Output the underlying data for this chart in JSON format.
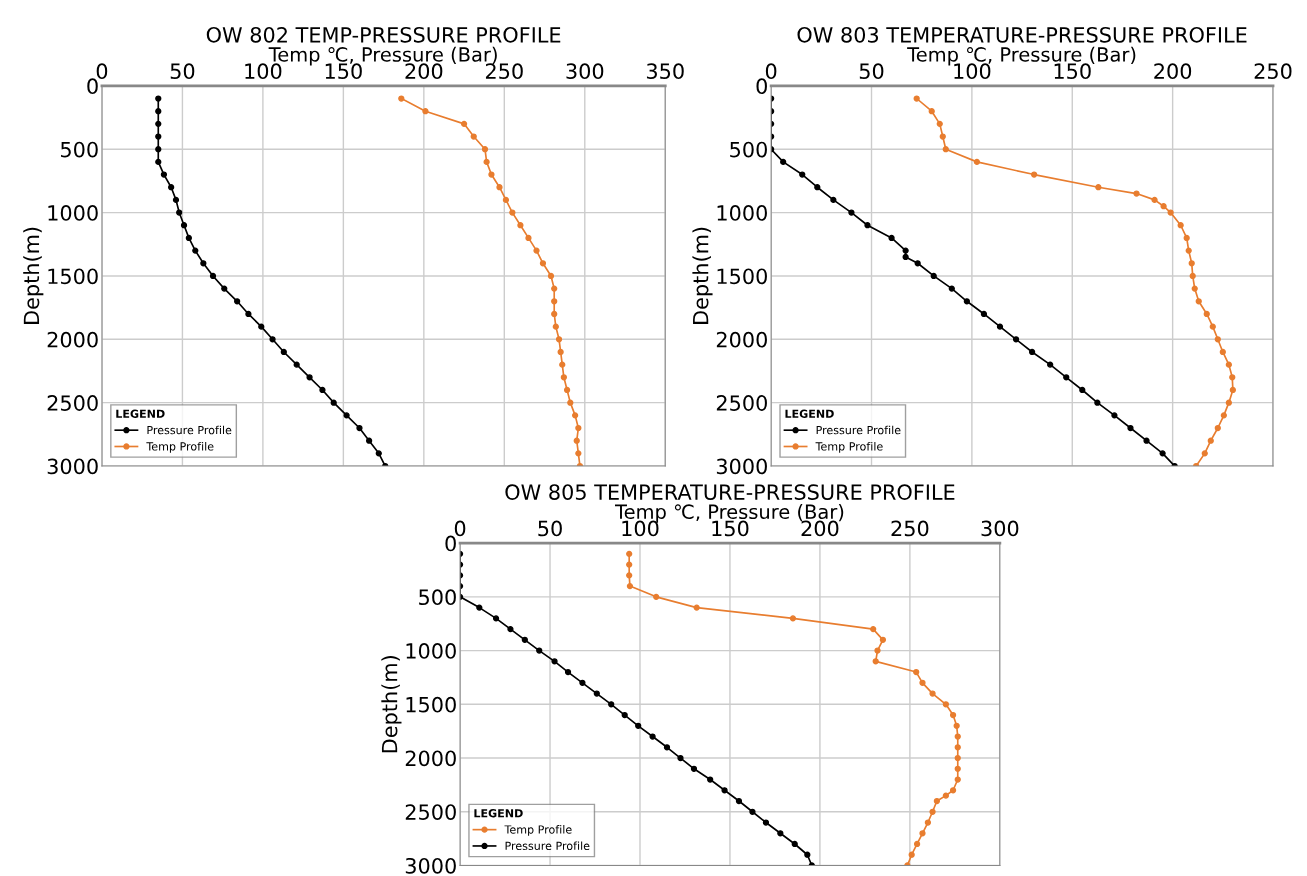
{
  "chart_data": [
    {
      "type": "line",
      "title": "OW 802 TEMP-PRESSURE PROFILE",
      "xlabel": "Temp ℃, Pressure (Bar)",
      "ylabel": "Depth(m)",
      "legend_title": "LEGEND",
      "legend": "bottom left",
      "grid": true,
      "marker": "circle",
      "line_style": "solid",
      "xlim": [
        0,
        350
      ],
      "xticks": [
        0,
        50,
        100,
        150,
        200,
        250,
        300,
        350
      ],
      "ylim": [
        3000,
        0
      ],
      "yticks": [
        0,
        500,
        1000,
        1500,
        2000,
        2500,
        3000
      ],
      "series": [
        {
          "name": "Pressure Profile",
          "color": "#000000",
          "x": [
            35,
            35,
            35,
            35,
            35,
            35,
            38.5,
            43,
            46,
            48,
            51,
            54,
            58,
            63,
            69,
            76,
            84,
            91,
            99,
            106,
            113,
            121,
            129,
            137,
            144,
            152,
            160,
            166,
            172,
            176
          ],
          "values": [
            100,
            200,
            300,
            400,
            500,
            600,
            700,
            800,
            900,
            1000,
            1100,
            1200,
            1300,
            1400,
            1500,
            1600,
            1700,
            1800,
            1900,
            2000,
            2100,
            2200,
            2300,
            2400,
            2500,
            2600,
            2700,
            2800,
            2900,
            3000
          ]
        },
        {
          "name": "Temp Profile",
          "color": "#e87d2f",
          "x": [
            186,
            201,
            225,
            231,
            238,
            239,
            242,
            247,
            251,
            255,
            260,
            265,
            270,
            274,
            279,
            281,
            281,
            281,
            282,
            284,
            285,
            286,
            287,
            289,
            291,
            294,
            296,
            295,
            296,
            297
          ],
          "values": [
            100,
            200,
            300,
            400,
            500,
            600,
            700,
            800,
            900,
            1000,
            1100,
            1200,
            1300,
            1400,
            1500,
            1600,
            1700,
            1800,
            1900,
            2000,
            2100,
            2200,
            2300,
            2400,
            2500,
            2600,
            2700,
            2800,
            2900,
            3000
          ]
        }
      ]
    },
    {
      "type": "line",
      "title": "OW 803 TEMPERATURE-PRESSURE PROFILE",
      "xlabel": "Temp ℃, Pressure (Bar)",
      "ylabel": "Depth(m)",
      "legend_title": "LEGEND",
      "legend": "bottom left",
      "grid": true,
      "marker": "circle",
      "line_style": "solid",
      "xlim": [
        0,
        250
      ],
      "xticks": [
        0,
        50,
        100,
        150,
        200,
        250
      ],
      "ylim": [
        3000,
        0
      ],
      "yticks": [
        0,
        500,
        1000,
        1500,
        2000,
        2500,
        3000
      ],
      "series": [
        {
          "name": "Pressure Profile",
          "color": "#000000",
          "x": [
            0,
            0,
            0,
            0,
            0,
            6,
            15.5,
            23,
            31,
            40,
            48,
            60,
            67,
            67,
            73,
            81,
            90,
            97.5,
            106,
            114,
            122,
            130,
            139,
            147,
            155,
            162.5,
            171,
            179,
            187,
            195,
            201
          ],
          "values": [
            100,
            200,
            300,
            400,
            500,
            600,
            700,
            800,
            900,
            1000,
            1100,
            1200,
            1300,
            1350,
            1400,
            1500,
            1600,
            1700,
            1800,
            1900,
            2000,
            2100,
            2200,
            2300,
            2400,
            2500,
            2600,
            2700,
            2800,
            2900,
            3000
          ]
        },
        {
          "name": "Temp Profile",
          "color": "#e87d2f",
          "x": [
            72.5,
            80,
            84,
            85.5,
            87,
            102.5,
            131,
            163,
            182,
            191,
            195.5,
            199,
            204,
            207,
            208,
            209.5,
            210,
            211,
            213,
            217,
            220,
            222.5,
            225,
            228,
            229.7,
            230,
            228,
            225.5,
            222.5,
            219,
            216,
            211.7
          ],
          "values": [
            100,
            200,
            300,
            400,
            500,
            600,
            700,
            800,
            850,
            900,
            950,
            1000,
            1100,
            1200,
            1300,
            1400,
            1500,
            1600,
            1700,
            1800,
            1900,
            2000,
            2100,
            2200,
            2300,
            2400,
            2500,
            2600,
            2700,
            2800,
            2900,
            3000
          ]
        }
      ]
    },
    {
      "type": "line",
      "title": "OW 805 TEMPERATURE-PRESSURE PROFILE",
      "xlabel": "Temp ℃, Pressure (Bar)",
      "ylabel": "Depth(m)",
      "legend_title": "LEGEND",
      "legend": "bottom left",
      "grid": true,
      "marker": "circle",
      "line_style": "solid",
      "xlim": [
        0,
        300
      ],
      "xticks": [
        0,
        50,
        100,
        150,
        200,
        250,
        300
      ],
      "ylim": [
        3000,
        0
      ],
      "yticks": [
        0,
        500,
        1000,
        1500,
        2000,
        2500,
        3000
      ],
      "series": [
        {
          "name": "Temp Profile",
          "color": "#e87d2f",
          "x": [
            94,
            94,
            94,
            94.4,
            109,
            131.5,
            185,
            229.6,
            235,
            232,
            231,
            253.5,
            257,
            262.6,
            270,
            274,
            276,
            276.6,
            276.6,
            276.6,
            276.6,
            276.6,
            274,
            270,
            265,
            262.6,
            260,
            257,
            254,
            251,
            248.6
          ],
          "values": [
            100,
            200,
            300,
            400,
            500,
            600,
            700,
            800,
            900,
            1000,
            1100,
            1200,
            1300,
            1400,
            1500,
            1600,
            1700,
            1800,
            1900,
            2000,
            2100,
            2200,
            2300,
            2350,
            2400,
            2500,
            2600,
            2700,
            2800,
            2900,
            3000
          ]
        },
        {
          "name": "Pressure Profile",
          "color": "#000000",
          "x": [
            0,
            0,
            0,
            0,
            0,
            10.7,
            20,
            28,
            36,
            44,
            52.5,
            60,
            68,
            76,
            84,
            91.5,
            99,
            107,
            115,
            122.5,
            130,
            139,
            147,
            155,
            162.5,
            170,
            178,
            186,
            193,
            195.5
          ],
          "values": [
            100,
            200,
            300,
            400,
            500,
            600,
            700,
            800,
            900,
            1000,
            1100,
            1200,
            1300,
            1400,
            1500,
            1600,
            1700,
            1800,
            1900,
            2000,
            2100,
            2200,
            2300,
            2400,
            2500,
            2600,
            2700,
            2800,
            2900,
            3000
          ]
        }
      ]
    }
  ]
}
